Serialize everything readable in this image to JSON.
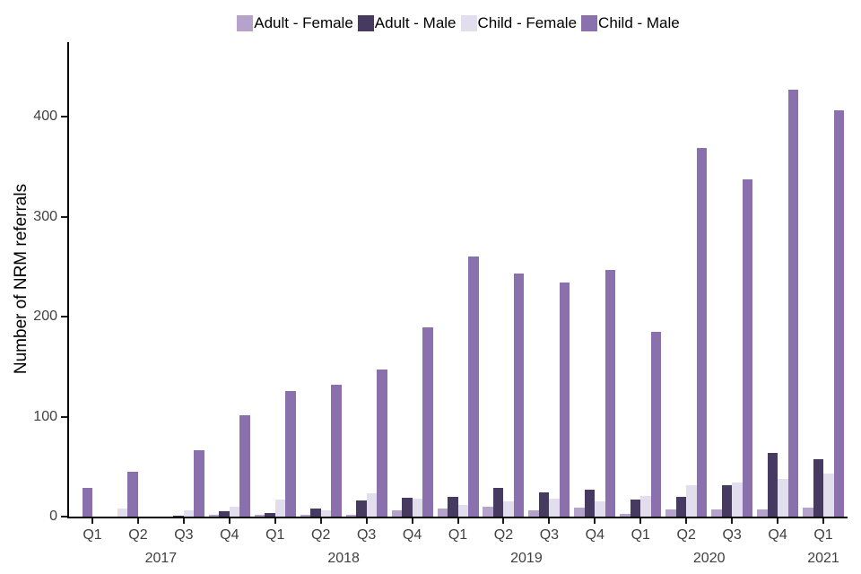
{
  "chart_data": {
    "type": "bar",
    "title": "",
    "xlabel": "",
    "ylabel": "Number of NRM referrals",
    "ylim": [
      0,
      470
    ],
    "yticks": [
      0,
      100,
      200,
      300,
      400
    ],
    "grid": false,
    "legend_position": "top-center",
    "x_quarters": [
      "Q1",
      "Q2",
      "Q3",
      "Q4",
      "Q1",
      "Q2",
      "Q3",
      "Q4",
      "Q1",
      "Q2",
      "Q3",
      "Q4",
      "Q1",
      "Q2",
      "Q3",
      "Q4",
      "Q1"
    ],
    "x_years": [
      {
        "label": "2017",
        "quarter_indexes": [
          0,
          1,
          2,
          3
        ]
      },
      {
        "label": "2018",
        "quarter_indexes": [
          4,
          5,
          6,
          7
        ]
      },
      {
        "label": "2019",
        "quarter_indexes": [
          8,
          9,
          10,
          11
        ]
      },
      {
        "label": "2020",
        "quarter_indexes": [
          12,
          13,
          14,
          15
        ]
      },
      {
        "label": "2021",
        "quarter_indexes": [
          16
        ]
      }
    ],
    "series": [
      {
        "name": "Adult - Female",
        "color": "#b5a3cb",
        "values": [
          0,
          0,
          0,
          2,
          2,
          2,
          2,
          6,
          8,
          10,
          6,
          9,
          3,
          7,
          7,
          7,
          9
        ]
      },
      {
        "name": "Adult - Male",
        "color": "#463a60",
        "values": [
          0,
          0,
          1,
          5,
          4,
          8,
          16,
          19,
          20,
          29,
          24,
          27,
          17,
          20,
          31,
          64,
          57
        ]
      },
      {
        "name": "Child - Female",
        "color": "#e3deee",
        "values": [
          0,
          8,
          6,
          10,
          17,
          6,
          23,
          18,
          12,
          15,
          18,
          15,
          21,
          31,
          34,
          38,
          43
        ]
      },
      {
        "name": "Child - Male",
        "color": "#8a70ac",
        "values": [
          29,
          45,
          66,
          101,
          126,
          132,
          147,
          189,
          260,
          243,
          234,
          247,
          185,
          369,
          337,
          427,
          406
        ]
      }
    ]
  },
  "colors": {
    "background": "#ffffff",
    "axis": "#000000",
    "tick_label": "#404040",
    "text": "#000000"
  }
}
